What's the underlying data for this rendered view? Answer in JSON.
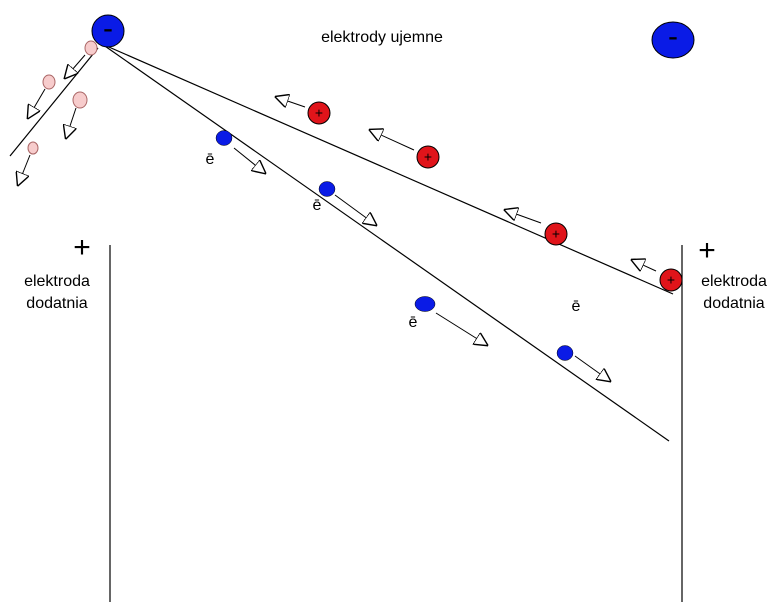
{
  "title": "elektrody ujemne",
  "negative_electrodes": [
    {
      "sign": "-"
    },
    {
      "sign": "-"
    }
  ],
  "positive_electrodes": [
    {
      "sign": "+",
      "label_lines": [
        "elektroda",
        "dodatnia"
      ]
    },
    {
      "sign": "+",
      "label_lines": [
        "elektroda",
        "dodatnia"
      ]
    }
  ],
  "ions": [
    {
      "sign": "+"
    },
    {
      "sign": "+"
    },
    {
      "sign": "+"
    },
    {
      "sign": "+"
    }
  ],
  "electrons": [
    {
      "label": "ē"
    },
    {
      "label": "ē"
    },
    {
      "label": "ē"
    },
    {
      "label": "ē"
    }
  ]
}
